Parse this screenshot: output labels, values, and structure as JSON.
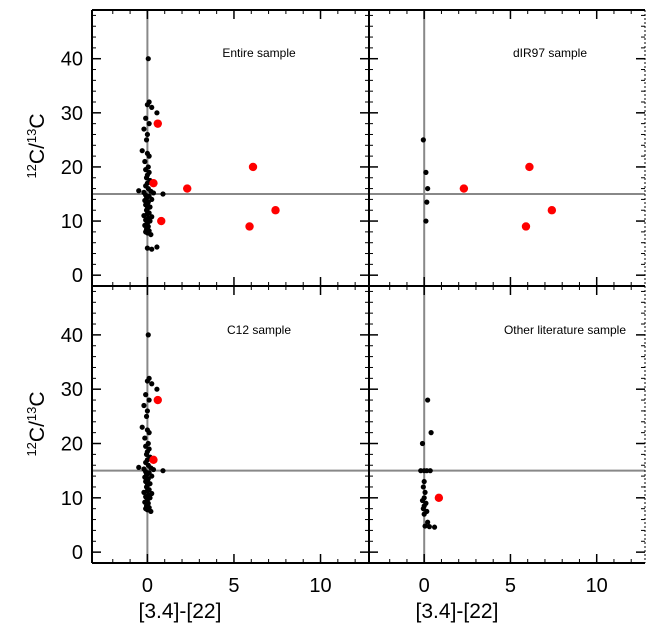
{
  "figure": {
    "xlabel": "[3.4]-[22]",
    "ylabel_main": "C/",
    "ylabel_sup1": "12",
    "ylabel_sup2": "13",
    "ylabel_end": "C"
  },
  "chart_data": [
    {
      "type": "scatter",
      "title": "Entire sample",
      "xlim": [
        -3.2,
        12.8
      ],
      "ylim": [
        -2,
        49
      ],
      "xticks": [
        0,
        5,
        10
      ],
      "yticks": [
        0,
        10,
        20,
        30,
        40
      ],
      "reference_lines": {
        "x": 0,
        "y": 15
      },
      "series": [
        {
          "color": "#000000",
          "points": [
            [
              0.05,
              40
            ],
            [
              0.1,
              32
            ],
            [
              0.0,
              31.5
            ],
            [
              0.25,
              31
            ],
            [
              0.55,
              30
            ],
            [
              -0.1,
              29
            ],
            [
              0.1,
              28
            ],
            [
              -0.2,
              27
            ],
            [
              0.0,
              26
            ],
            [
              -0.05,
              25
            ],
            [
              -0.3,
              23
            ],
            [
              0.0,
              22.5
            ],
            [
              0.1,
              22
            ],
            [
              -0.15,
              21
            ],
            [
              0.05,
              20
            ],
            [
              -0.1,
              19.5
            ],
            [
              0.1,
              19
            ],
            [
              0.0,
              18.5
            ],
            [
              -0.05,
              18
            ],
            [
              0.15,
              17.5
            ],
            [
              0.0,
              17
            ],
            [
              -0.1,
              16.5
            ],
            [
              0.05,
              16
            ],
            [
              -0.5,
              15.6
            ],
            [
              0.2,
              15.5
            ],
            [
              -0.2,
              15.3
            ],
            [
              0.35,
              15.2
            ],
            [
              0.9,
              15
            ],
            [
              -0.1,
              14.8
            ],
            [
              0.1,
              14.6
            ],
            [
              -0.05,
              14.2
            ],
            [
              0.25,
              14
            ],
            [
              -0.15,
              13.8
            ],
            [
              0.05,
              13.5
            ],
            [
              0.0,
              13.2
            ],
            [
              -0.1,
              13
            ],
            [
              0.15,
              12.6
            ],
            [
              0.0,
              12.3
            ],
            [
              -0.05,
              12
            ],
            [
              0.1,
              11.5
            ],
            [
              0.0,
              11.3
            ],
            [
              -0.2,
              11
            ],
            [
              0.25,
              10.8
            ],
            [
              0.05,
              10.5
            ],
            [
              -0.1,
              10.2
            ],
            [
              0.15,
              10
            ],
            [
              0.0,
              9.6
            ],
            [
              -0.15,
              9.2
            ],
            [
              0.05,
              9
            ],
            [
              -0.05,
              8.5
            ],
            [
              0.1,
              8.2
            ],
            [
              -0.1,
              8
            ],
            [
              0.0,
              7.8
            ],
            [
              0.2,
              7.5
            ],
            [
              0.0,
              5
            ],
            [
              0.25,
              4.8
            ],
            [
              0.55,
              5.2
            ]
          ]
        },
        {
          "color": "#ff0000",
          "points": [
            [
              0.6,
              28
            ],
            [
              0.35,
              17
            ],
            [
              2.3,
              16
            ],
            [
              6.1,
              20
            ],
            [
              0.8,
              10
            ],
            [
              5.9,
              9
            ],
            [
              7.4,
              12
            ]
          ]
        }
      ]
    },
    {
      "type": "scatter",
      "title": "dIR97 sample",
      "xlim": [
        -3.2,
        12.8
      ],
      "ylim": [
        -2,
        49
      ],
      "xticks": [
        0,
        5,
        10
      ],
      "yticks": [
        0,
        10,
        20,
        30,
        40
      ],
      "reference_lines": {
        "x": 0,
        "y": 15
      },
      "series": [
        {
          "color": "#000000",
          "points": [
            [
              -0.05,
              25
            ],
            [
              0.1,
              19
            ],
            [
              0.2,
              16
            ],
            [
              0.15,
              13.5
            ],
            [
              0.1,
              10
            ]
          ]
        },
        {
          "color": "#ff0000",
          "points": [
            [
              2.3,
              16
            ],
            [
              6.1,
              20
            ],
            [
              5.9,
              9
            ],
            [
              7.4,
              12
            ]
          ]
        }
      ]
    },
    {
      "type": "scatter",
      "title": "C12 sample",
      "xlim": [
        -3.2,
        12.8
      ],
      "ylim": [
        -2,
        49
      ],
      "xticks": [
        0,
        5,
        10
      ],
      "yticks": [
        0,
        10,
        20,
        30,
        40
      ],
      "reference_lines": {
        "x": 0,
        "y": 15
      },
      "series": [
        {
          "color": "#000000",
          "points": [
            [
              0.05,
              40
            ],
            [
              0.1,
              32
            ],
            [
              0.0,
              31.5
            ],
            [
              0.25,
              31
            ],
            [
              0.55,
              30
            ],
            [
              -0.1,
              29
            ],
            [
              0.1,
              28
            ],
            [
              -0.2,
              27
            ],
            [
              0.0,
              26
            ],
            [
              -0.05,
              25
            ],
            [
              -0.3,
              23
            ],
            [
              0.0,
              22.5
            ],
            [
              0.1,
              22
            ],
            [
              -0.15,
              21
            ],
            [
              0.05,
              20
            ],
            [
              -0.1,
              19.5
            ],
            [
              0.1,
              19
            ],
            [
              0.0,
              18.5
            ],
            [
              -0.05,
              18
            ],
            [
              0.15,
              17.5
            ],
            [
              0.0,
              17
            ],
            [
              -0.1,
              16.5
            ],
            [
              0.05,
              16
            ],
            [
              -0.5,
              15.6
            ],
            [
              0.2,
              15.5
            ],
            [
              -0.2,
              15.3
            ],
            [
              0.35,
              15.2
            ],
            [
              0.9,
              15
            ],
            [
              -0.1,
              14.8
            ],
            [
              0.1,
              14.6
            ],
            [
              -0.05,
              14.2
            ],
            [
              0.25,
              14
            ],
            [
              -0.15,
              13.8
            ],
            [
              0.05,
              13.5
            ],
            [
              0.0,
              13.2
            ],
            [
              -0.1,
              13
            ],
            [
              0.15,
              12.6
            ],
            [
              0.0,
              12.3
            ],
            [
              -0.05,
              12
            ],
            [
              0.1,
              11.5
            ],
            [
              0.0,
              11.3
            ],
            [
              -0.2,
              11
            ],
            [
              0.25,
              10.8
            ],
            [
              0.05,
              10.5
            ],
            [
              -0.1,
              10.2
            ],
            [
              0.15,
              10
            ],
            [
              0.0,
              9.6
            ],
            [
              -0.15,
              9.2
            ],
            [
              0.05,
              9
            ],
            [
              -0.05,
              8.5
            ],
            [
              0.1,
              8.2
            ],
            [
              -0.1,
              8
            ],
            [
              0.0,
              7.8
            ],
            [
              0.2,
              7.5
            ]
          ]
        },
        {
          "color": "#ff0000",
          "points": [
            [
              0.6,
              28
            ],
            [
              0.35,
              17
            ]
          ]
        }
      ]
    },
    {
      "type": "scatter",
      "title": "Other literature sample",
      "xlim": [
        -3.2,
        12.8
      ],
      "ylim": [
        -2,
        49
      ],
      "xticks": [
        0,
        5,
        10
      ],
      "yticks": [
        0,
        10,
        20,
        30,
        40
      ],
      "reference_lines": {
        "x": 0,
        "y": 15
      },
      "series": [
        {
          "color": "#000000",
          "points": [
            [
              0.2,
              28
            ],
            [
              0.4,
              22
            ],
            [
              -0.1,
              20
            ],
            [
              -0.2,
              15
            ],
            [
              0.0,
              15
            ],
            [
              0.15,
              15
            ],
            [
              0.35,
              15
            ],
            [
              0.0,
              13
            ],
            [
              -0.05,
              12
            ],
            [
              0.05,
              11
            ],
            [
              0.0,
              10
            ],
            [
              -0.1,
              9.5
            ],
            [
              0.1,
              9
            ],
            [
              0.0,
              8.5
            ],
            [
              -0.05,
              8
            ],
            [
              0.15,
              7.5
            ],
            [
              0.0,
              7
            ],
            [
              0.2,
              5.5
            ],
            [
              0.05,
              4.8
            ],
            [
              0.3,
              4.7
            ],
            [
              0.6,
              4.6
            ]
          ]
        },
        {
          "color": "#ff0000",
          "points": [
            [
              0.85,
              10
            ]
          ]
        }
      ]
    }
  ]
}
